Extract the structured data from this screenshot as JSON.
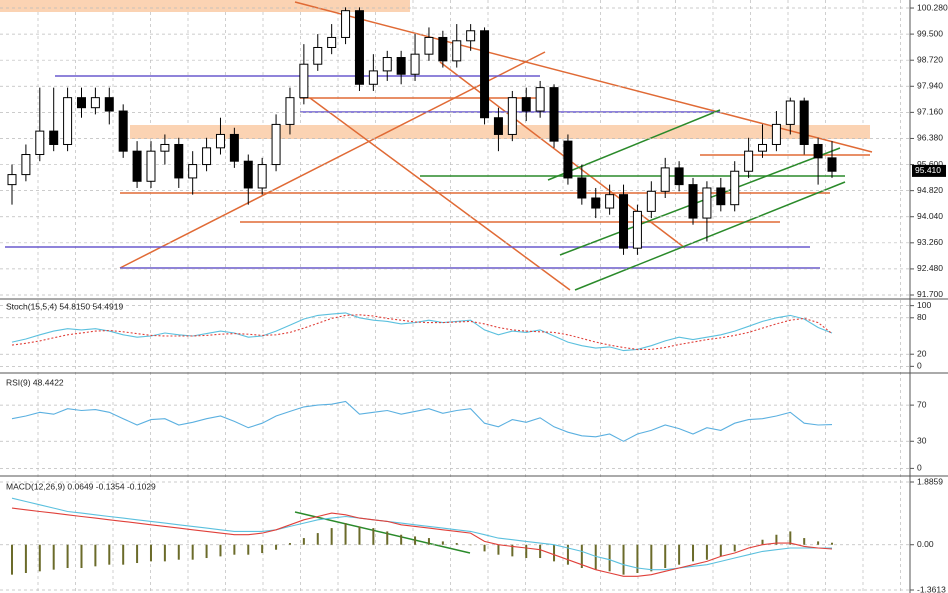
{
  "chart_data": [
    {
      "type": "candlestick",
      "open": [
        95.0,
        95.3,
        95.9,
        96.6,
        96.2,
        97.6,
        97.3,
        97.6,
        97.2,
        96.0,
        95.1,
        96.0,
        96.2,
        95.2,
        95.6,
        96.1,
        96.5,
        95.7,
        94.9,
        95.6,
        96.8,
        97.6,
        98.6,
        99.1,
        99.4,
        100.2,
        98.0,
        98.4,
        98.8,
        98.3,
        98.9,
        99.4,
        98.7,
        99.3,
        99.6,
        97.0,
        96.5,
        97.6,
        97.2,
        97.9,
        96.3,
        95.2,
        94.6,
        94.3,
        94.7,
        93.1,
        94.2,
        94.8,
        95.5,
        95.0,
        94.0,
        94.9,
        94.4,
        95.4,
        96.0,
        96.2,
        96.8,
        97.5,
        96.2,
        95.8
      ],
      "high": [
        95.6,
        96.2,
        97.9,
        97.9,
        97.9,
        97.9,
        97.9,
        97.9,
        97.4,
        96.3,
        96.3,
        96.5,
        96.4,
        96.0,
        96.4,
        97.0,
        96.7,
        95.9,
        95.8,
        97.1,
        97.9,
        99.2,
        99.5,
        99.8,
        100.3,
        100.3,
        98.9,
        99.0,
        99.0,
        99.5,
        99.7,
        99.6,
        99.8,
        99.8,
        99.7,
        97.3,
        97.8,
        97.9,
        98.1,
        98.0,
        96.5,
        95.6,
        94.9,
        95.0,
        95.0,
        94.4,
        95.1,
        95.8,
        95.7,
        95.2,
        95.1,
        95.2,
        95.7,
        96.4,
        96.8,
        97.2,
        97.6,
        97.6,
        96.4,
        96.3
      ],
      "low": [
        94.4,
        95.1,
        95.7,
        96.0,
        96.0,
        97.0,
        97.1,
        96.8,
        95.8,
        94.9,
        94.9,
        95.6,
        94.9,
        94.7,
        95.4,
        95.9,
        95.5,
        94.4,
        94.7,
        95.4,
        96.5,
        97.4,
        98.4,
        98.9,
        99.2,
        97.8,
        97.8,
        98.1,
        98.0,
        98.1,
        98.7,
        98.5,
        98.5,
        99.0,
        96.8,
        96.0,
        96.3,
        96.9,
        97.0,
        96.1,
        95.0,
        94.4,
        94.0,
        94.1,
        92.9,
        92.9,
        94.0,
        94.6,
        94.8,
        93.8,
        93.3,
        94.2,
        94.2,
        95.2,
        95.8,
        96.0,
        96.5,
        95.9,
        95.0,
        95.2
      ],
      "close": [
        95.3,
        95.9,
        96.6,
        96.2,
        97.6,
        97.3,
        97.6,
        97.2,
        96.0,
        95.1,
        96.0,
        96.2,
        95.2,
        95.6,
        96.1,
        96.5,
        95.7,
        94.9,
        95.6,
        96.8,
        97.6,
        98.6,
        99.1,
        99.4,
        100.2,
        98.0,
        98.4,
        98.8,
        98.3,
        98.9,
        99.4,
        98.7,
        99.3,
        99.6,
        97.0,
        96.5,
        97.6,
        97.2,
        97.9,
        96.3,
        95.2,
        94.6,
        94.3,
        94.7,
        93.1,
        94.2,
        94.8,
        95.5,
        95.0,
        94.0,
        94.9,
        94.4,
        95.4,
        96.0,
        96.2,
        96.8,
        97.5,
        96.2,
        95.8,
        95.4
      ],
      "up_color": "#ffffff",
      "down_color": "#000000",
      "ylim": [
        91.64,
        100.46
      ],
      "yticks": [
        {
          "value": 100.28,
          "label": "100.280"
        },
        {
          "value": 99.5,
          "label": "99.500"
        },
        {
          "value": 98.72,
          "label": "98.720"
        },
        {
          "value": 97.94,
          "label": "97.940"
        },
        {
          "value": 97.16,
          "label": "97.160"
        },
        {
          "value": 96.38,
          "label": "96.380"
        },
        {
          "value": 95.6,
          "label": "95.600"
        },
        {
          "value": 94.82,
          "label": "94.820"
        },
        {
          "value": 94.04,
          "label": "94.040"
        },
        {
          "value": 93.26,
          "label": "93.260"
        },
        {
          "value": 92.48,
          "label": "92.480"
        },
        {
          "value": 91.7,
          "label": "91.700"
        }
      ],
      "last_price": {
        "value": 95.41,
        "label": "95.410"
      },
      "grid": true
    },
    {
      "type": "line",
      "title": "Stoch(15,5,4) 54.8150 54.4919",
      "ylim": [
        -6,
        106
      ],
      "yticks": [
        100,
        80,
        20,
        0
      ],
      "grid": true,
      "series": [
        {
          "color": "#5bc0de",
          "style": "solid",
          "values": [
            40,
            45,
            52,
            58,
            62,
            60,
            62,
            58,
            52,
            48,
            50,
            55,
            52,
            50,
            54,
            58,
            55,
            48,
            50,
            58,
            68,
            78,
            84,
            86,
            88,
            80,
            76,
            74,
            70,
            72,
            76,
            72,
            74,
            76,
            60,
            52,
            58,
            56,
            60,
            50,
            40,
            34,
            30,
            32,
            26,
            28,
            34,
            42,
            48,
            44,
            48,
            52,
            58,
            66,
            74,
            80,
            84,
            78,
            64,
            55
          ]
        },
        {
          "color": "#e0403a",
          "style": "dotted",
          "values": [
            35,
            38,
            42,
            47,
            52,
            55,
            58,
            59,
            57,
            54,
            51,
            50,
            50,
            50,
            51,
            53,
            54,
            53,
            51,
            52,
            56,
            63,
            71,
            79,
            84,
            85,
            83,
            79,
            76,
            73,
            72,
            72,
            73,
            74,
            70,
            64,
            60,
            58,
            57,
            56,
            52,
            46,
            40,
            35,
            31,
            28,
            28,
            31,
            36,
            40,
            44,
            47,
            51,
            56,
            63,
            70,
            76,
            79,
            72,
            54
          ]
        }
      ]
    },
    {
      "type": "line",
      "title": "RSI(9) 48.4422",
      "ylim": [
        -4,
        100
      ],
      "yticks": [
        70,
        30,
        0
      ],
      "grid": true,
      "series": [
        {
          "color": "#5bb0e0",
          "style": "solid",
          "values": [
            55,
            58,
            62,
            60,
            66,
            64,
            65,
            62,
            55,
            48,
            54,
            55,
            48,
            51,
            55,
            58,
            52,
            45,
            50,
            58,
            63,
            68,
            70,
            71,
            74,
            60,
            62,
            64,
            60,
            63,
            66,
            61,
            64,
            66,
            50,
            46,
            54,
            51,
            56,
            46,
            40,
            36,
            35,
            38,
            30,
            38,
            42,
            48,
            44,
            38,
            45,
            42,
            50,
            54,
            55,
            58,
            62,
            50,
            48,
            48.4
          ]
        }
      ]
    },
    {
      "type": "combo",
      "title": "MACD(12,26,9) 0.0649 -0.1354 -0.1029",
      "ylim": [
        -1.3613,
        1.8859
      ],
      "yticks": [
        1.8859,
        {
          "value": 0,
          "label": "0.00"
        },
        -1.3613
      ],
      "grid": true,
      "series": [
        {
          "type": "bar",
          "color": "#6b6b2a",
          "values": [
            -0.9,
            -0.85,
            -0.8,
            -0.75,
            -0.7,
            -0.7,
            -0.65,
            -0.6,
            -0.6,
            -0.55,
            -0.5,
            -0.5,
            -0.45,
            -0.45,
            -0.4,
            -0.35,
            -0.3,
            -0.3,
            -0.25,
            -0.15,
            0.05,
            0.2,
            0.35,
            0.5,
            0.65,
            0.55,
            0.5,
            0.4,
            0.3,
            0.25,
            0.2,
            0.1,
            0.05,
            0.0,
            -0.2,
            -0.3,
            -0.35,
            -0.4,
            -0.4,
            -0.5,
            -0.6,
            -0.7,
            -0.75,
            -0.8,
            -0.9,
            -0.85,
            -0.8,
            -0.7,
            -0.6,
            -0.5,
            -0.45,
            -0.35,
            -0.2,
            0.0,
            0.15,
            0.3,
            0.4,
            0.2,
            0.1,
            0.06
          ]
        },
        {
          "type": "line",
          "color": "#5bc0de",
          "values": [
            1.4,
            1.3,
            1.2,
            1.1,
            1.0,
            0.95,
            0.9,
            0.85,
            0.8,
            0.75,
            0.7,
            0.65,
            0.6,
            0.55,
            0.5,
            0.45,
            0.4,
            0.4,
            0.4,
            0.45,
            0.55,
            0.65,
            0.75,
            0.8,
            0.85,
            0.8,
            0.75,
            0.7,
            0.65,
            0.6,
            0.55,
            0.5,
            0.45,
            0.4,
            0.3,
            0.2,
            0.15,
            0.1,
            0.05,
            0.0,
            -0.1,
            -0.2,
            -0.35,
            -0.45,
            -0.6,
            -0.7,
            -0.75,
            -0.75,
            -0.7,
            -0.65,
            -0.6,
            -0.5,
            -0.4,
            -0.3,
            -0.2,
            -0.15,
            -0.1,
            -0.1,
            -0.1,
            -0.1
          ]
        },
        {
          "type": "line",
          "color": "#e0403a",
          "values": [
            1.1,
            1.05,
            1.0,
            0.95,
            0.9,
            0.85,
            0.8,
            0.75,
            0.7,
            0.65,
            0.6,
            0.55,
            0.5,
            0.45,
            0.4,
            0.35,
            0.3,
            0.3,
            0.35,
            0.45,
            0.6,
            0.75,
            0.85,
            0.95,
            0.9,
            0.8,
            0.75,
            0.7,
            0.6,
            0.55,
            0.5,
            0.45,
            0.4,
            0.35,
            0.1,
            0.0,
            -0.05,
            -0.1,
            -0.15,
            -0.3,
            -0.45,
            -0.6,
            -0.75,
            -0.85,
            -0.95,
            -0.95,
            -0.9,
            -0.8,
            -0.7,
            -0.6,
            -0.5,
            -0.35,
            -0.25,
            -0.1,
            0.0,
            0.05,
            0.05,
            -0.05,
            -0.1,
            -0.13
          ]
        }
      ]
    }
  ]
}
